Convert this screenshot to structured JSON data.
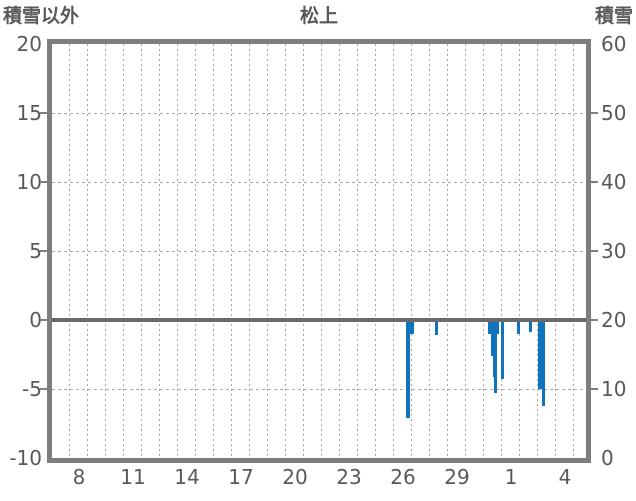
{
  "header": {
    "left_axis_title": "積雪以外",
    "title": "松上",
    "right_axis_title": "積雪"
  },
  "colors": {
    "bar": "#0f74bb",
    "plot_border": "#7e7e7e",
    "zero_line": "#6a6a6a",
    "gridline": "#a8a8a8",
    "text": "#595959",
    "background": "#ffffff"
  },
  "chart_data": {
    "type": "bar",
    "title": "松上",
    "left_axis": {
      "title": "積雪以外",
      "max": 20,
      "min": -10,
      "tick_step": 5,
      "ticks": [
        20,
        15,
        10,
        5,
        0,
        -5,
        -10
      ]
    },
    "right_axis": {
      "title": "積雪",
      "max": 60,
      "min": 0,
      "tick_step": 10,
      "ticks": [
        60,
        50,
        40,
        30,
        20,
        10,
        0
      ]
    },
    "x_axis": {
      "unit": "day-of-month",
      "domain_start": 7.0,
      "domain_end": 36.67,
      "gridline_every_day": true,
      "note": "x positions greater than 31 are days of the following month (32 = 1st)",
      "tick_labels": [
        {
          "label": "8",
          "x": 8.5
        },
        {
          "label": "11",
          "x": 11.5
        },
        {
          "label": "14",
          "x": 14.5
        },
        {
          "label": "17",
          "x": 17.5
        },
        {
          "label": "20",
          "x": 20.5
        },
        {
          "label": "23",
          "x": 23.5
        },
        {
          "label": "26",
          "x": 26.5
        },
        {
          "label": "29",
          "x": 29.5
        },
        {
          "label": "1",
          "x": 32.5
        },
        {
          "label": "4",
          "x": 35.5
        }
      ]
    },
    "h_gridline_values_left_axis": [
      15,
      10,
      5,
      -5
    ],
    "zero_line_value": 0,
    "bars": [
      {
        "day": "26",
        "x": 26.68,
        "w": 0.22,
        "value": -7.1
      },
      {
        "day": "26",
        "x": 26.9,
        "w": 0.19,
        "value": -1.0
      },
      {
        "day": "28",
        "x": 28.29,
        "w": 0.17,
        "value": -1.1
      },
      {
        "day": "31",
        "x": 31.22,
        "w": 0.15,
        "value": -1.0
      },
      {
        "day": "31",
        "x": 31.37,
        "w": 0.12,
        "value": -2.6
      },
      {
        "day": "31",
        "x": 31.48,
        "w": 0.09,
        "value": -4.1
      },
      {
        "day": "31",
        "x": 31.55,
        "w": 0.15,
        "value": -5.3
      },
      {
        "day": "31",
        "x": 31.7,
        "w": 0.13,
        "value": -1.0
      },
      {
        "day": "31",
        "x": 31.96,
        "w": 0.16,
        "value": -4.3
      },
      {
        "day": "1",
        "x": 32.83,
        "w": 0.17,
        "value": -1.0
      },
      {
        "day": "2",
        "x": 33.52,
        "w": 0.15,
        "value": -0.9
      },
      {
        "day": "3",
        "x": 34.0,
        "w": 0.21,
        "value": -5.0
      },
      {
        "day": "3",
        "x": 34.24,
        "w": 0.18,
        "value": -6.2
      }
    ]
  }
}
